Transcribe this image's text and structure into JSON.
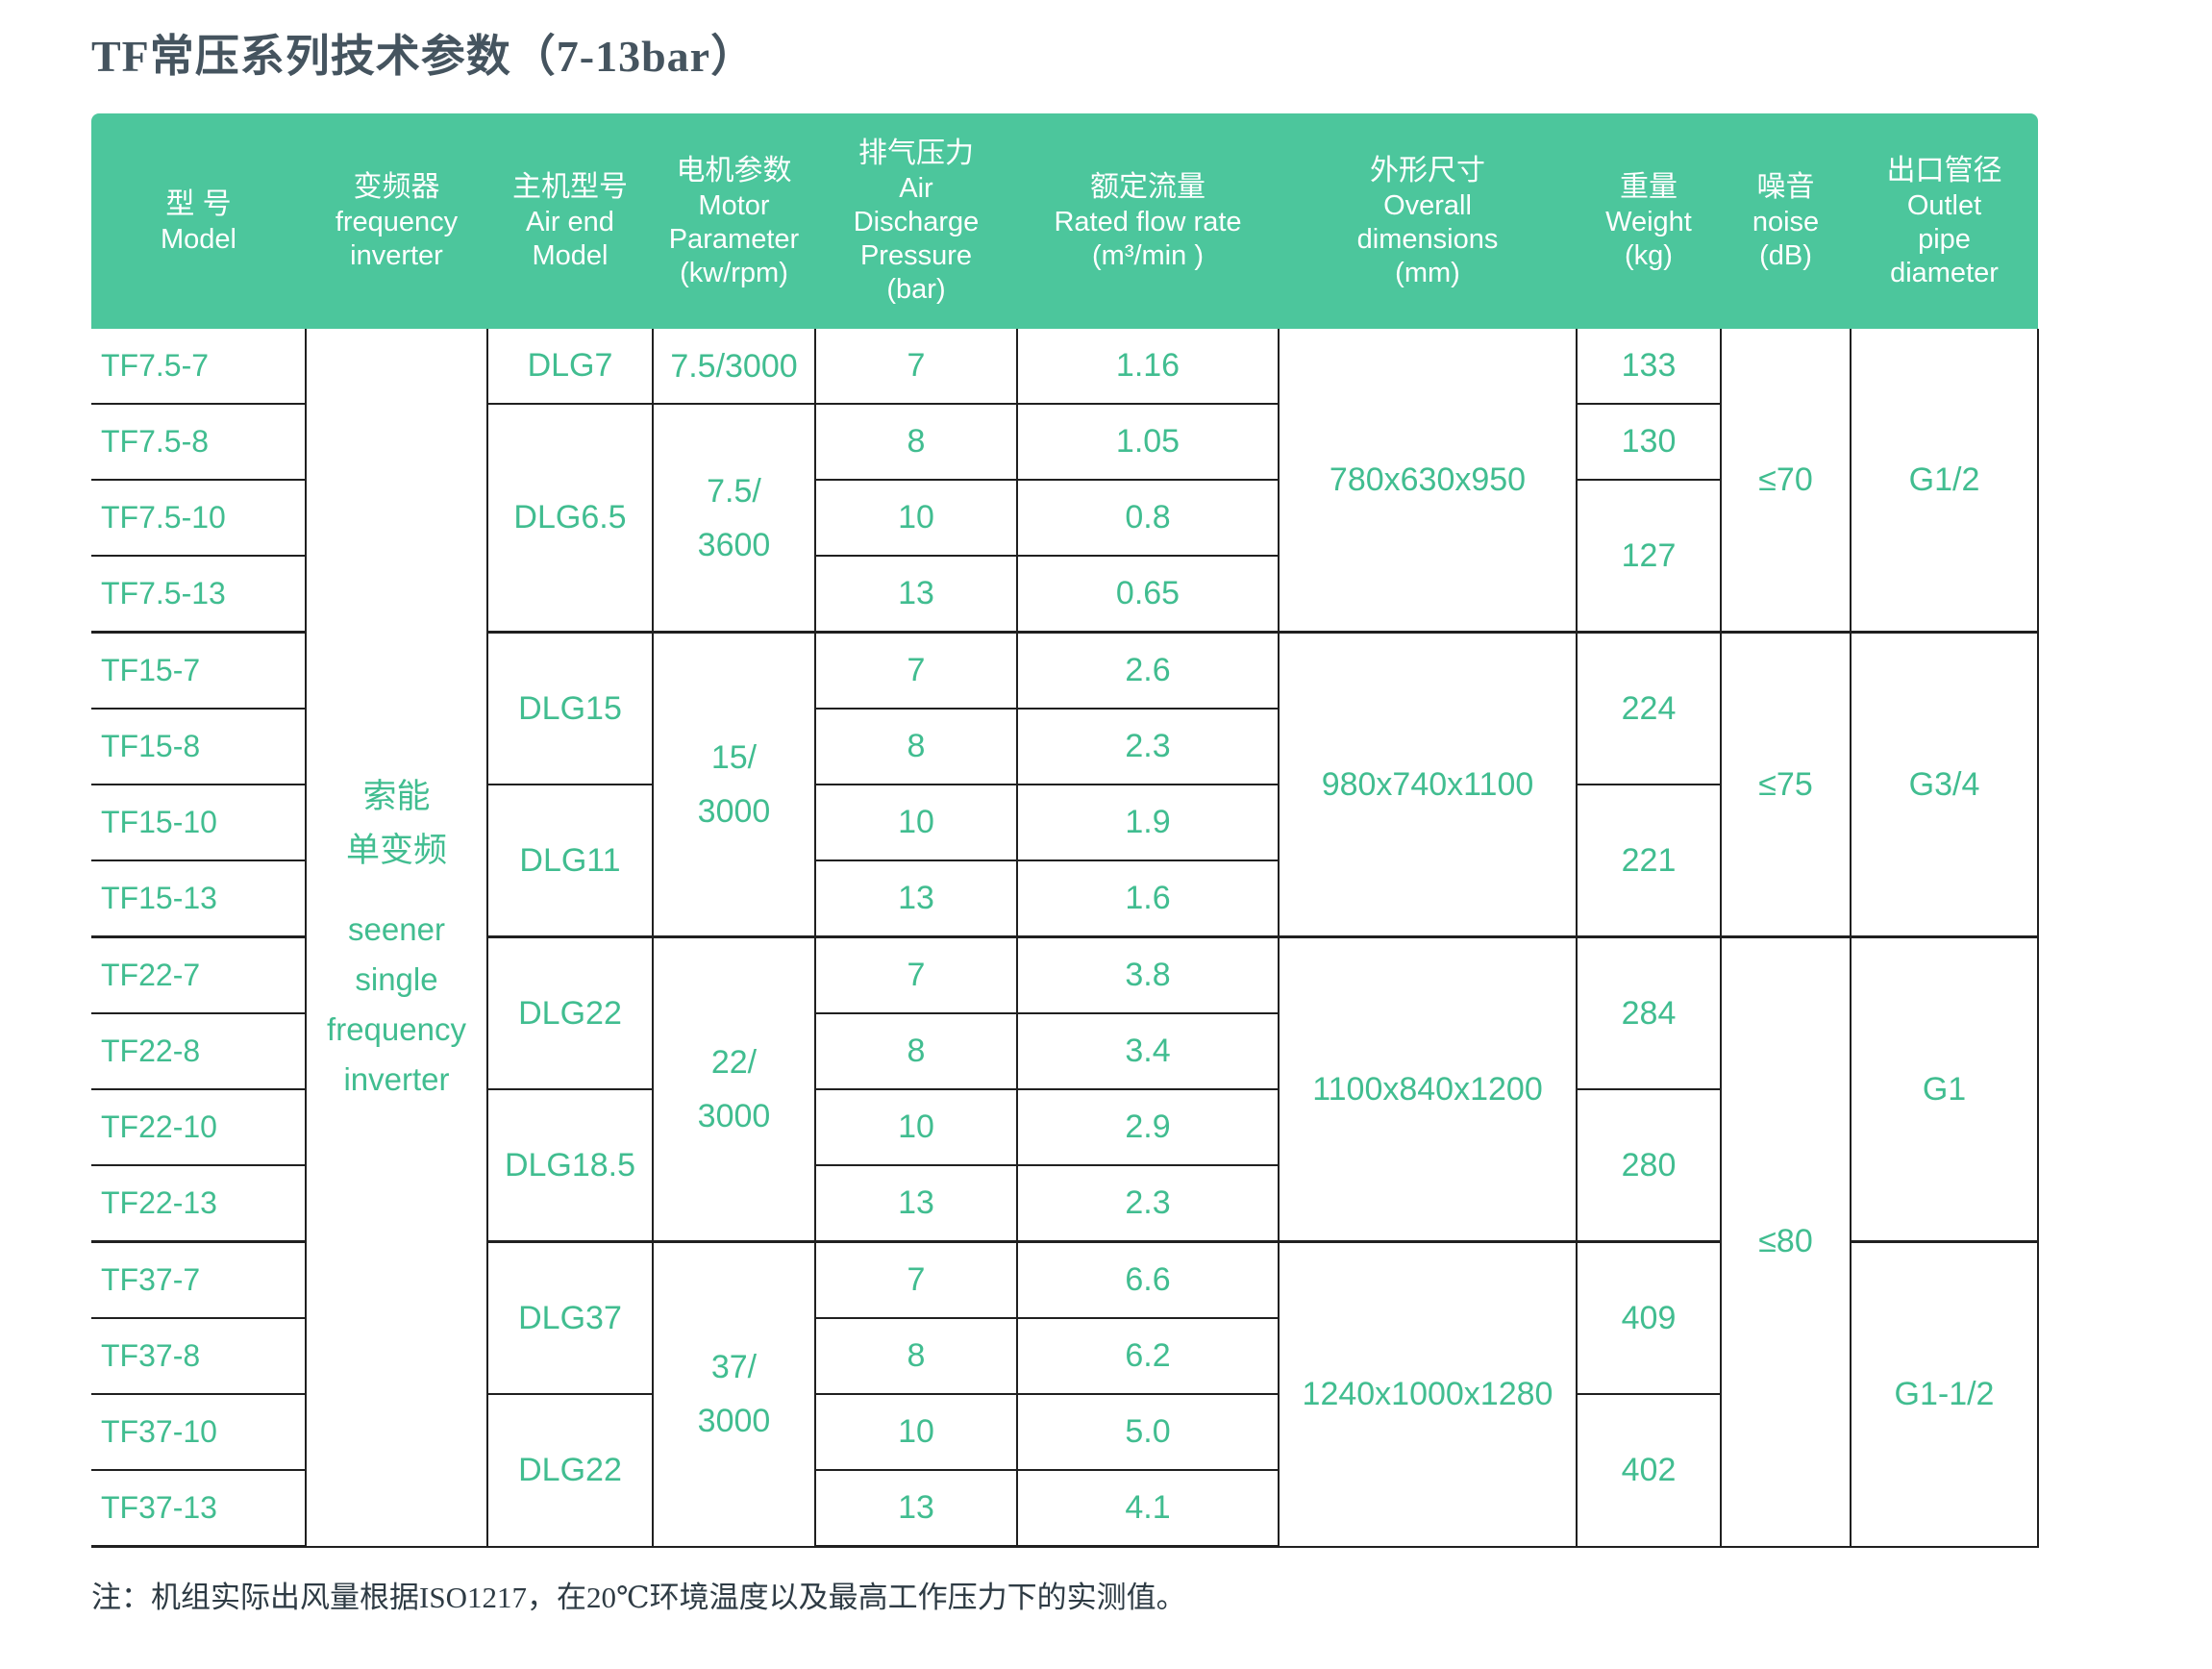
{
  "page": {
    "title": "TF常压系列技术参数（7-13bar）",
    "note": "注：机组实际出风量根据ISO1217，在20℃环境温度以及最高工作压力下的实测值。"
  },
  "colors": {
    "header_bg": "#4cc69c",
    "data_text": "#41bd90",
    "title_text": "#45545f",
    "border": "#202020",
    "note_text": "#2e3b44"
  },
  "table": {
    "headers": [
      {
        "key": "model",
        "zh": "型 号",
        "en": [
          "Model"
        ]
      },
      {
        "key": "inverter",
        "zh": "变频器",
        "en": [
          "frequency",
          "inverter"
        ]
      },
      {
        "key": "airend",
        "zh": "主机型号",
        "en": [
          "Air end",
          "Model"
        ]
      },
      {
        "key": "motor",
        "zh": "电机参数",
        "en": [
          "Motor",
          "Parameter",
          "(kw/rpm)"
        ]
      },
      {
        "key": "pressure",
        "zh": "排气压力",
        "en": [
          "Air",
          "Discharge",
          "Pressure",
          "(bar)"
        ]
      },
      {
        "key": "flow",
        "zh": "额定流量",
        "en": [
          "Rated flow rate",
          "(m³/min )"
        ]
      },
      {
        "key": "dims",
        "zh": "外形尺寸",
        "en": [
          "Overall",
          "dimensions",
          "(mm)"
        ]
      },
      {
        "key": "weight",
        "zh": "重量",
        "en": [
          "Weight",
          "(kg)"
        ]
      },
      {
        "key": "noise",
        "zh": "噪音",
        "en": [
          "noise",
          "(dB)"
        ]
      },
      {
        "key": "outlet",
        "zh": "出口管径",
        "en": [
          "Outlet",
          "pipe",
          "diameter"
        ]
      }
    ],
    "inverter": {
      "zh": [
        "索能",
        "单变频"
      ],
      "en": [
        "seener",
        "single",
        "frequency",
        "inverter"
      ]
    },
    "rows": [
      {
        "model": "TF7.5-7",
        "airend": {
          "text": "DLG7",
          "span": 1
        },
        "motor": {
          "lines": [
            "7.5/3000"
          ],
          "span": 1
        },
        "pressure": "7",
        "flow": "1.16",
        "dims": {
          "text": "780x630x950",
          "span": 4
        },
        "weight": {
          "text": "133",
          "span": 1
        },
        "noise": {
          "text": "≤70",
          "span": 4
        },
        "outlet": {
          "text": "G1/2",
          "span": 4
        }
      },
      {
        "model": "TF7.5-8",
        "airend": {
          "text": "DLG6.5",
          "span": 3
        },
        "motor": {
          "lines": [
            "7.5/",
            "3600"
          ],
          "span": 3
        },
        "pressure": "8",
        "flow": "1.05",
        "weight": {
          "text": "130",
          "span": 1
        }
      },
      {
        "model": "TF7.5-10",
        "pressure": "10",
        "flow": "0.8",
        "weight": {
          "text": "127",
          "span": 2
        }
      },
      {
        "model": "TF7.5-13",
        "pressure": "13",
        "flow": "0.65"
      },
      {
        "model": "TF15-7",
        "airend": {
          "text": "DLG15",
          "span": 2
        },
        "motor": {
          "lines": [
            "15/",
            "3000"
          ],
          "span": 4
        },
        "pressure": "7",
        "flow": "2.6",
        "dims": {
          "text": "980x740x1100",
          "span": 4
        },
        "weight": {
          "text": "224",
          "span": 2
        },
        "noise": {
          "text": "≤75",
          "span": 4
        },
        "outlet": {
          "text": "G3/4",
          "span": 4
        }
      },
      {
        "model": "TF15-8",
        "pressure": "8",
        "flow": "2.3"
      },
      {
        "model": "TF15-10",
        "airend": {
          "text": "DLG11",
          "span": 2
        },
        "pressure": "10",
        "flow": "1.9",
        "weight": {
          "text": "221",
          "span": 2
        }
      },
      {
        "model": "TF15-13",
        "pressure": "13",
        "flow": "1.6"
      },
      {
        "model": "TF22-7",
        "airend": {
          "text": "DLG22",
          "span": 2
        },
        "motor": {
          "lines": [
            "22/",
            "3000"
          ],
          "span": 4
        },
        "pressure": "7",
        "flow": "3.8",
        "dims": {
          "text": "1100x840x1200",
          "span": 4
        },
        "weight": {
          "text": "284",
          "span": 2
        },
        "noise": {
          "text": "≤80",
          "span": 8
        },
        "outlet": {
          "text": "G1",
          "span": 4
        }
      },
      {
        "model": "TF22-8",
        "pressure": "8",
        "flow": "3.4"
      },
      {
        "model": "TF22-10",
        "airend": {
          "text": "DLG18.5",
          "span": 2
        },
        "pressure": "10",
        "flow": "2.9",
        "weight": {
          "text": "280",
          "span": 2
        }
      },
      {
        "model": "TF22-13",
        "pressure": "13",
        "flow": "2.3"
      },
      {
        "model": "TF37-7",
        "airend": {
          "text": "DLG37",
          "span": 2
        },
        "motor": {
          "lines": [
            "37/",
            "3000"
          ],
          "span": 4
        },
        "pressure": "7",
        "flow": "6.6",
        "dims": {
          "text": "1240x1000x1280",
          "span": 4
        },
        "weight": {
          "text": "409",
          "span": 2
        },
        "outlet": {
          "text": "G1-1/2",
          "span": 4
        }
      },
      {
        "model": "TF37-8",
        "pressure": "8",
        "flow": "6.2"
      },
      {
        "model": "TF37-10",
        "airend": {
          "text": "DLG22",
          "span": 2
        },
        "pressure": "10",
        "flow": "5.0",
        "weight": {
          "text": "402",
          "span": 2
        }
      },
      {
        "model": "TF37-13",
        "pressure": "13",
        "flow": "4.1"
      }
    ]
  }
}
